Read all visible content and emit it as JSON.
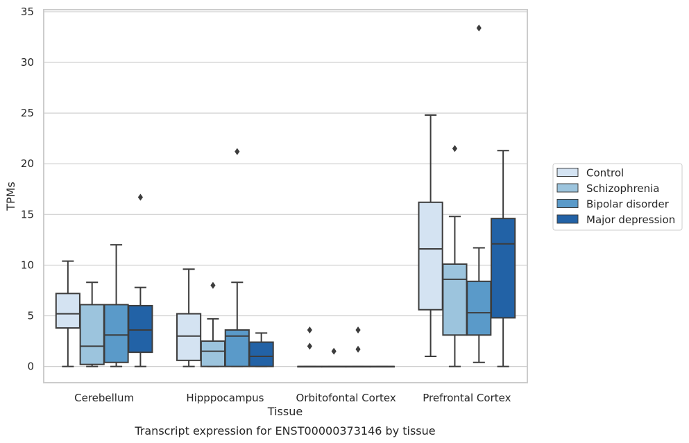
{
  "chart_data": {
    "type": "box",
    "xlabel": "Tissue",
    "ylabel": "TPMs",
    "caption": "Transcript expression for ENST00000373146 by tissue",
    "ylim": [
      -1.6,
      35.2
    ],
    "yticks": [
      0,
      5,
      10,
      15,
      20,
      25,
      30,
      35
    ],
    "grid": "horizontal",
    "legend_position": "right",
    "categories": [
      "Cerebellum",
      "Hipppocampus",
      "Orbitofontal Cortex",
      "Prefrontal Cortex"
    ],
    "series": [
      {
        "name": "Control",
        "color": "#d4e3f2",
        "boxes": [
          {
            "whislo": 0.0,
            "q1": 3.8,
            "med": 5.2,
            "q3": 7.2,
            "whishi": 10.4,
            "fliers": []
          },
          {
            "whislo": 0.0,
            "q1": 0.6,
            "med": 3.0,
            "q3": 5.2,
            "whishi": 9.6,
            "fliers": []
          },
          {
            "whislo": 0.0,
            "q1": 0.0,
            "med": 0.0,
            "q3": 0.0,
            "whishi": 0.0,
            "fliers": [
              3.6,
              2.0
            ]
          },
          {
            "whislo": 1.0,
            "q1": 5.6,
            "med": 11.6,
            "q3": 16.2,
            "whishi": 24.8,
            "fliers": []
          }
        ]
      },
      {
        "name": "Schizophrenia",
        "color": "#9cc4dd",
        "boxes": [
          {
            "whislo": 0.0,
            "q1": 0.2,
            "med": 2.0,
            "q3": 6.1,
            "whishi": 8.3,
            "fliers": []
          },
          {
            "whislo": 0.0,
            "q1": 0.0,
            "med": 1.5,
            "q3": 2.5,
            "whishi": 4.7,
            "fliers": [
              8.0
            ]
          },
          {
            "whislo": 0.0,
            "q1": 0.0,
            "med": 0.0,
            "q3": 0.0,
            "whishi": 0.0,
            "fliers": [
              1.5
            ]
          },
          {
            "whislo": 0.0,
            "q1": 3.1,
            "med": 8.6,
            "q3": 10.1,
            "whishi": 14.8,
            "fliers": [
              21.5
            ]
          }
        ]
      },
      {
        "name": "Bipolar disorder",
        "color": "#5a9ac9",
        "boxes": [
          {
            "whislo": 0.0,
            "q1": 0.4,
            "med": 3.1,
            "q3": 6.1,
            "whishi": 12.0,
            "fliers": []
          },
          {
            "whislo": 0.0,
            "q1": 0.0,
            "med": 3.0,
            "q3": 3.6,
            "whishi": 8.3,
            "fliers": [
              21.2
            ]
          },
          {
            "whislo": 0.0,
            "q1": 0.0,
            "med": 0.0,
            "q3": 0.0,
            "whishi": 0.0,
            "fliers": [
              3.6,
              1.7
            ]
          },
          {
            "whislo": 0.4,
            "q1": 3.1,
            "med": 5.3,
            "q3": 8.4,
            "whishi": 11.7,
            "fliers": [
              33.4
            ]
          }
        ]
      },
      {
        "name": "Major depression",
        "color": "#2262a6",
        "boxes": [
          {
            "whislo": 0.0,
            "q1": 1.4,
            "med": 3.6,
            "q3": 6.0,
            "whishi": 7.8,
            "fliers": [
              16.7
            ]
          },
          {
            "whislo": 0.0,
            "q1": 0.0,
            "med": 1.0,
            "q3": 2.4,
            "whishi": 3.3,
            "fliers": []
          },
          {
            "whislo": 0.0,
            "q1": 0.0,
            "med": 0.0,
            "q3": 0.0,
            "whishi": 0.0,
            "fliers": []
          },
          {
            "whislo": 0.0,
            "q1": 4.8,
            "med": 12.1,
            "q3": 14.6,
            "whishi": 21.3,
            "fliers": []
          }
        ]
      }
    ],
    "colors": {
      "box_edge": "#3c3c3c",
      "grid": "#d0d0d0",
      "frame": "#cccccc",
      "text": "#262626"
    }
  }
}
